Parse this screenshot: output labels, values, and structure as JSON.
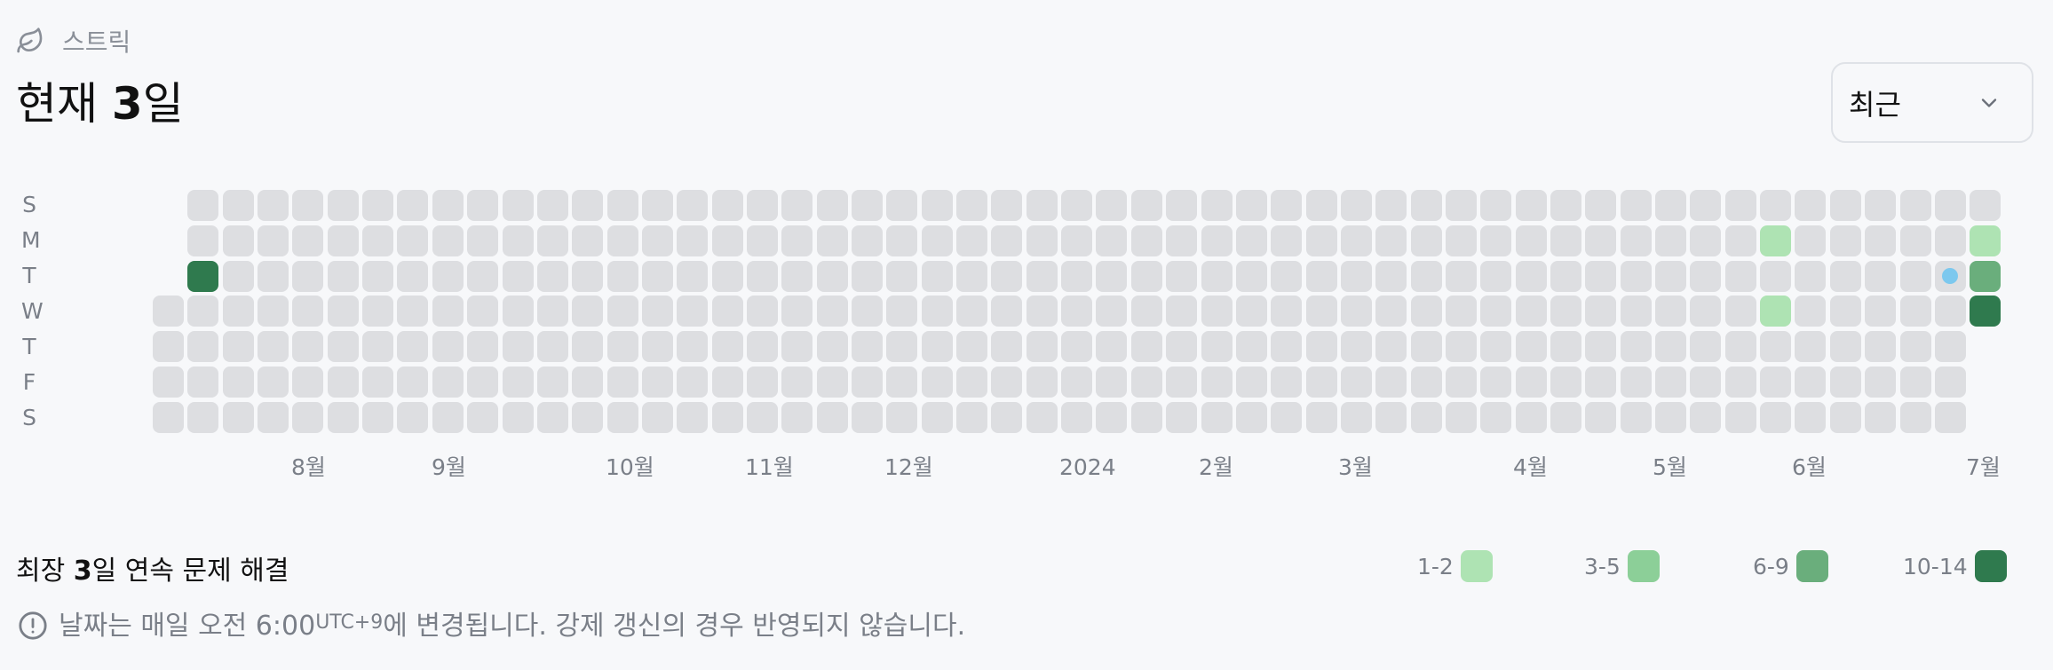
{
  "header": {
    "label": "스트릭",
    "icon": "leaf-icon"
  },
  "title": {
    "prefix": "현재 ",
    "value": "3",
    "suffix": "일"
  },
  "period_select": {
    "value": "최근",
    "icon": "chevron-down-icon"
  },
  "weekdays": [
    "S",
    "M",
    "T",
    "W",
    "T",
    "F",
    "S"
  ],
  "months": [
    "8월",
    "9월",
    "10월",
    "11월",
    "12월",
    "2024",
    "2월",
    "3월",
    "4월",
    "5월",
    "6월",
    "7월"
  ],
  "heatmap": {
    "weeks": 53,
    "levels": [
      {
        "label": "1-2",
        "color": "#aee3b3"
      },
      {
        "label": "3-5",
        "color": "#8ccf98"
      },
      {
        "label": "6-9",
        "color": "#6aae7c"
      },
      {
        "label": "10-14",
        "color": "#2f7a4e"
      }
    ],
    "empty_color": "#dddee1",
    "active_days": [
      {
        "week": 1,
        "day": 2,
        "level": 4
      },
      {
        "week": 46,
        "day": 1,
        "level": 1
      },
      {
        "week": 46,
        "day": 3,
        "level": 1
      },
      {
        "week": 51,
        "day": 2,
        "today": true
      },
      {
        "week": 52,
        "day": 1,
        "level": 1
      },
      {
        "week": 52,
        "day": 2,
        "level": 3
      },
      {
        "week": 52,
        "day": 3,
        "level": 4
      }
    ]
  },
  "summary": {
    "prefix": "최장 ",
    "value": "3",
    "suffix": "일 연속 문제 해결"
  },
  "legend": [
    {
      "label": "1-2",
      "color": "#aee3b3"
    },
    {
      "label": "3-5",
      "color": "#8ccf98"
    },
    {
      "label": "6-9",
      "color": "#6aae7c"
    },
    {
      "label": "10-14",
      "color": "#2f7a4e"
    }
  ],
  "notice": {
    "icon": "alert-circle-icon",
    "text_before": "날짜는 매일 오전 6:00",
    "timezone": "UTC+9",
    "text_after": "에 변경됩니다. 강제 갱신의 경우 반영되지 않습니다."
  }
}
